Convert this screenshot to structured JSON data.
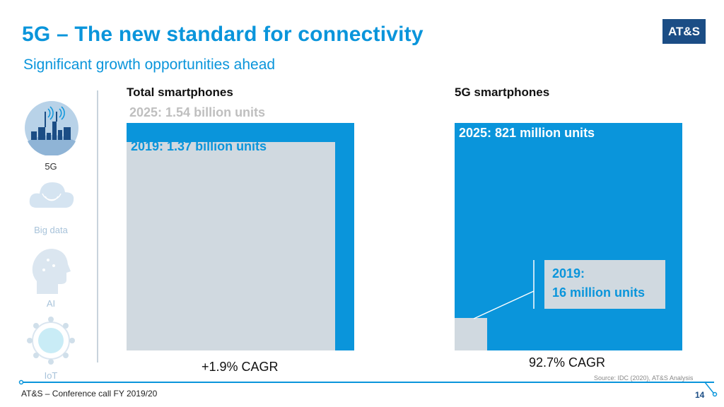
{
  "header": {
    "title": "5G – The new standard for connectivity",
    "subtitle": "Significant growth opportunities ahead",
    "logo": "AT&S"
  },
  "sidebar": {
    "items": [
      {
        "label": "5G",
        "icon": "city-antenna-icon",
        "active": true
      },
      {
        "label": "Big data",
        "icon": "cloud-icon",
        "active": false
      },
      {
        "label": "AI",
        "icon": "head-circuit-icon",
        "active": false
      },
      {
        "label": "IoT",
        "icon": "globe-network-icon",
        "active": false
      }
    ]
  },
  "chart_data": [
    {
      "type": "area",
      "title": "Total smartphones",
      "unit": "billion units",
      "series": [
        {
          "name": "2025",
          "value": 1.54,
          "label": "2025: 1.54 billion units",
          "color": "#0a95db"
        },
        {
          "name": "2019",
          "value": 1.37,
          "label": "2019: 1.37 billion units",
          "color": "#d0d9e0"
        }
      ],
      "annotation": "+1.9% CAGR"
    },
    {
      "type": "area",
      "title": "5G smartphones",
      "unit": "million units",
      "series": [
        {
          "name": "2025",
          "value": 821,
          "label": "2025: 821 million units",
          "color": "#0a95db"
        },
        {
          "name": "2019",
          "value": 16,
          "label_line1": "2019:",
          "label_line2": "16 million units",
          "color": "#d0d9e0"
        }
      ],
      "annotation": "92.7% CAGR"
    }
  ],
  "footer": {
    "text": "AT&S – Conference call FY 2019/20",
    "source": "Source: IDC (2020), AT&S Analysis",
    "page": "14"
  },
  "colors": {
    "accent": "#0a95db",
    "gray": "#d0d9e0",
    "navy": "#1b4d85",
    "muted": "#bfbfbf"
  }
}
